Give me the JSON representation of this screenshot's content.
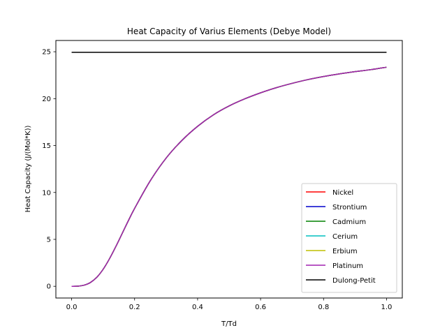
{
  "chart_data": {
    "type": "line",
    "title": "Heat Capacity of Varius Elements (Debye Model)",
    "xlabel": "T/Td",
    "ylabel": "Heat Capacity (J/(Mol*K))",
    "xlim": [
      -0.05,
      1.05
    ],
    "ylim": [
      -1.25,
      26.2
    ],
    "xticks": [
      0.0,
      0.2,
      0.4,
      0.6,
      0.8,
      1.0
    ],
    "xtick_labels": [
      "0.0",
      "0.2",
      "0.4",
      "0.6",
      "0.8",
      "1.0"
    ],
    "yticks": [
      0,
      5,
      10,
      15,
      20,
      25
    ],
    "ytick_labels": [
      "0",
      "5",
      "10",
      "15",
      "20",
      "25"
    ],
    "grid": false,
    "legend_position": "bottom-right",
    "x": [
      0.0,
      0.02,
      0.04,
      0.06,
      0.08,
      0.1,
      0.12,
      0.14,
      0.16,
      0.18,
      0.2,
      0.25,
      0.3,
      0.35,
      0.4,
      0.45,
      0.5,
      0.55,
      0.6,
      0.65,
      0.7,
      0.75,
      0.8,
      0.85,
      0.9,
      0.95,
      1.0
    ],
    "series": [
      {
        "name": "Nickel",
        "color": "#ff0000",
        "values": [
          0.0,
          0.015,
          0.12,
          0.41,
          0.96,
          1.81,
          2.92,
          4.21,
          5.59,
          6.98,
          8.3,
          11.26,
          13.66,
          15.54,
          17.05,
          18.27,
          19.22,
          19.98,
          20.62,
          21.17,
          21.63,
          22.03,
          22.36,
          22.64,
          22.88,
          23.09,
          23.35
        ]
      },
      {
        "name": "Strontium",
        "color": "#0000cc",
        "values": [
          0.0,
          0.015,
          0.12,
          0.41,
          0.96,
          1.81,
          2.92,
          4.21,
          5.59,
          6.98,
          8.3,
          11.26,
          13.66,
          15.54,
          17.05,
          18.27,
          19.22,
          19.98,
          20.62,
          21.17,
          21.63,
          22.03,
          22.36,
          22.64,
          22.88,
          23.09,
          23.35
        ]
      },
      {
        "name": "Cadmium",
        "color": "#008000",
        "values": [
          0.0,
          0.015,
          0.12,
          0.41,
          0.96,
          1.81,
          2.92,
          4.21,
          5.59,
          6.98,
          8.3,
          11.26,
          13.66,
          15.54,
          17.05,
          18.27,
          19.22,
          19.98,
          20.62,
          21.17,
          21.63,
          22.03,
          22.36,
          22.64,
          22.88,
          23.09,
          23.35
        ]
      },
      {
        "name": "Cerium",
        "color": "#00bfbf",
        "values": [
          0.0,
          0.015,
          0.12,
          0.41,
          0.96,
          1.81,
          2.92,
          4.21,
          5.59,
          6.98,
          8.3,
          11.26,
          13.66,
          15.54,
          17.05,
          18.27,
          19.22,
          19.98,
          20.62,
          21.17,
          21.63,
          22.03,
          22.36,
          22.64,
          22.88,
          23.09,
          23.35
        ]
      },
      {
        "name": "Erbium",
        "color": "#bfbf00",
        "values": [
          0.0,
          0.015,
          0.12,
          0.41,
          0.96,
          1.81,
          2.92,
          4.21,
          5.59,
          6.98,
          8.3,
          11.26,
          13.66,
          15.54,
          17.05,
          18.27,
          19.22,
          19.98,
          20.62,
          21.17,
          21.63,
          22.03,
          22.36,
          22.64,
          22.88,
          23.09,
          23.35
        ]
      },
      {
        "name": "Platinum",
        "color": "#a020b0",
        "values": [
          0.0,
          0.015,
          0.12,
          0.41,
          0.96,
          1.81,
          2.92,
          4.21,
          5.59,
          6.98,
          8.3,
          11.26,
          13.66,
          15.54,
          17.05,
          18.27,
          19.22,
          19.98,
          20.62,
          21.17,
          21.63,
          22.03,
          22.36,
          22.64,
          22.88,
          23.09,
          23.35
        ]
      },
      {
        "name": "Dulong-Petit",
        "color": "#000000",
        "values": [
          24.94,
          24.94,
          24.94,
          24.94,
          24.94,
          24.94,
          24.94,
          24.94,
          24.94,
          24.94,
          24.94,
          24.94,
          24.94,
          24.94,
          24.94,
          24.94,
          24.94,
          24.94,
          24.94,
          24.94,
          24.94,
          24.94,
          24.94,
          24.94,
          24.94,
          24.94,
          24.94
        ]
      }
    ]
  }
}
